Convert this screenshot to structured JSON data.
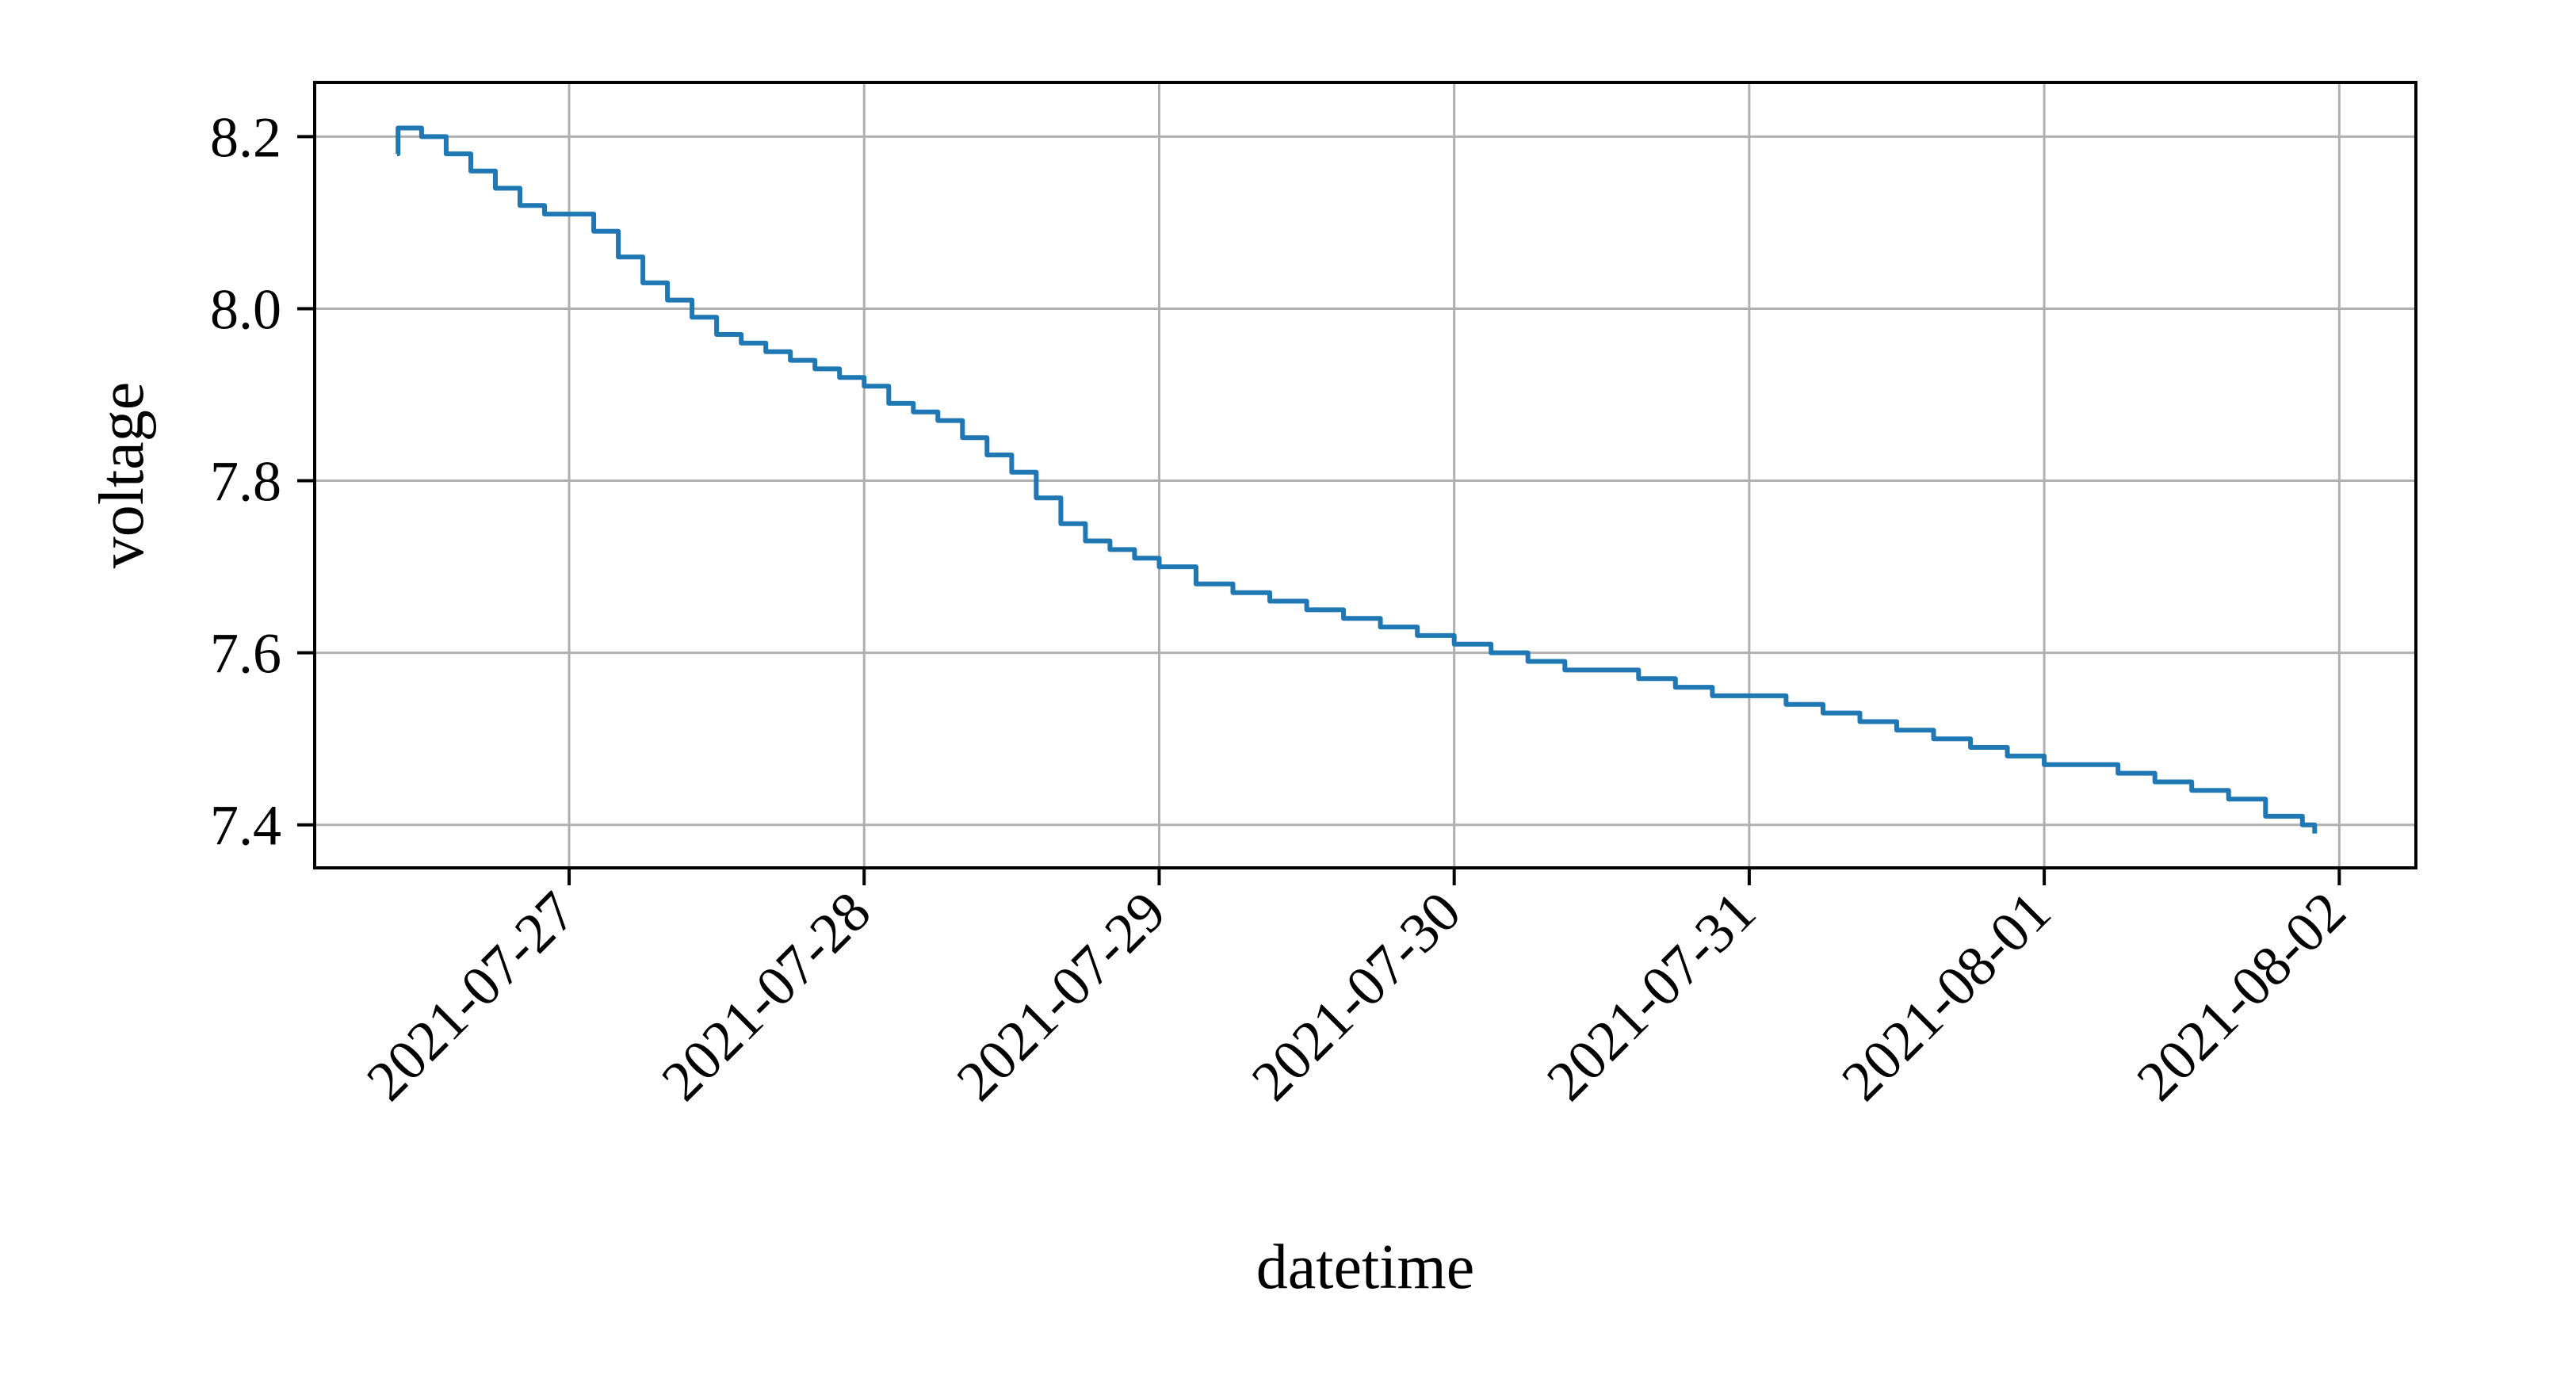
{
  "chart_data": {
    "type": "line",
    "xlabel": "datetime",
    "ylabel": "voltage",
    "xlim": [
      "2021-07-26 03:18",
      "2021-08-02 06:14"
    ],
    "ylim": [
      7.35,
      8.263
    ],
    "grid": true,
    "legend": "none",
    "x_ticks": [
      "2021-07-27",
      "2021-07-28",
      "2021-07-29",
      "2021-07-30",
      "2021-07-31",
      "2021-08-01",
      "2021-08-02"
    ],
    "y_ticks": [
      "7.4",
      "7.6",
      "7.8",
      "8.0",
      "8.2"
    ],
    "series": [
      {
        "color": "#1f77b4",
        "x": [
          "2021-07-26 10:00",
          "2021-07-26 10:05",
          "2021-07-26 12:00",
          "2021-07-26 14:00",
          "2021-07-26 16:00",
          "2021-07-26 18:00",
          "2021-07-26 20:00",
          "2021-07-26 22:00",
          "2021-07-27 00:00",
          "2021-07-27 02:00",
          "2021-07-27 04:00",
          "2021-07-27 06:00",
          "2021-07-27 08:00",
          "2021-07-27 10:00",
          "2021-07-27 12:00",
          "2021-07-27 14:00",
          "2021-07-27 16:00",
          "2021-07-27 18:00",
          "2021-07-27 20:00",
          "2021-07-27 22:00",
          "2021-07-28 00:00",
          "2021-07-28 02:00",
          "2021-07-28 04:00",
          "2021-07-28 06:00",
          "2021-07-28 08:00",
          "2021-07-28 10:00",
          "2021-07-28 12:00",
          "2021-07-28 14:00",
          "2021-07-28 16:00",
          "2021-07-28 18:00",
          "2021-07-28 20:00",
          "2021-07-28 22:00",
          "2021-07-29 00:00",
          "2021-07-29 03:00",
          "2021-07-29 06:00",
          "2021-07-29 09:00",
          "2021-07-29 12:00",
          "2021-07-29 15:00",
          "2021-07-29 18:00",
          "2021-07-29 21:00",
          "2021-07-30 00:00",
          "2021-07-30 03:00",
          "2021-07-30 06:00",
          "2021-07-30 09:00",
          "2021-07-30 12:00",
          "2021-07-30 15:00",
          "2021-07-30 18:00",
          "2021-07-30 21:00",
          "2021-07-31 00:00",
          "2021-07-31 03:00",
          "2021-07-31 06:00",
          "2021-07-31 09:00",
          "2021-07-31 12:00",
          "2021-07-31 15:00",
          "2021-07-31 18:00",
          "2021-07-31 21:00",
          "2021-08-01 00:00",
          "2021-08-01 03:00",
          "2021-08-01 06:00",
          "2021-08-01 09:00",
          "2021-08-01 12:00",
          "2021-08-01 15:00",
          "2021-08-01 18:00",
          "2021-08-01 21:00",
          "2021-08-01 22:00"
        ],
        "y": [
          8.18,
          8.21,
          8.2,
          8.18,
          8.16,
          8.14,
          8.12,
          8.11,
          8.11,
          8.09,
          8.06,
          8.03,
          8.01,
          7.99,
          7.97,
          7.96,
          7.95,
          7.94,
          7.93,
          7.92,
          7.91,
          7.89,
          7.88,
          7.87,
          7.85,
          7.83,
          7.81,
          7.78,
          7.75,
          7.73,
          7.72,
          7.71,
          7.7,
          7.68,
          7.67,
          7.66,
          7.65,
          7.64,
          7.63,
          7.62,
          7.61,
          7.6,
          7.59,
          7.58,
          7.58,
          7.57,
          7.56,
          7.55,
          7.55,
          7.54,
          7.53,
          7.52,
          7.51,
          7.5,
          7.49,
          7.48,
          7.47,
          7.47,
          7.46,
          7.45,
          7.44,
          7.43,
          7.41,
          7.4,
          7.39
        ]
      }
    ]
  }
}
